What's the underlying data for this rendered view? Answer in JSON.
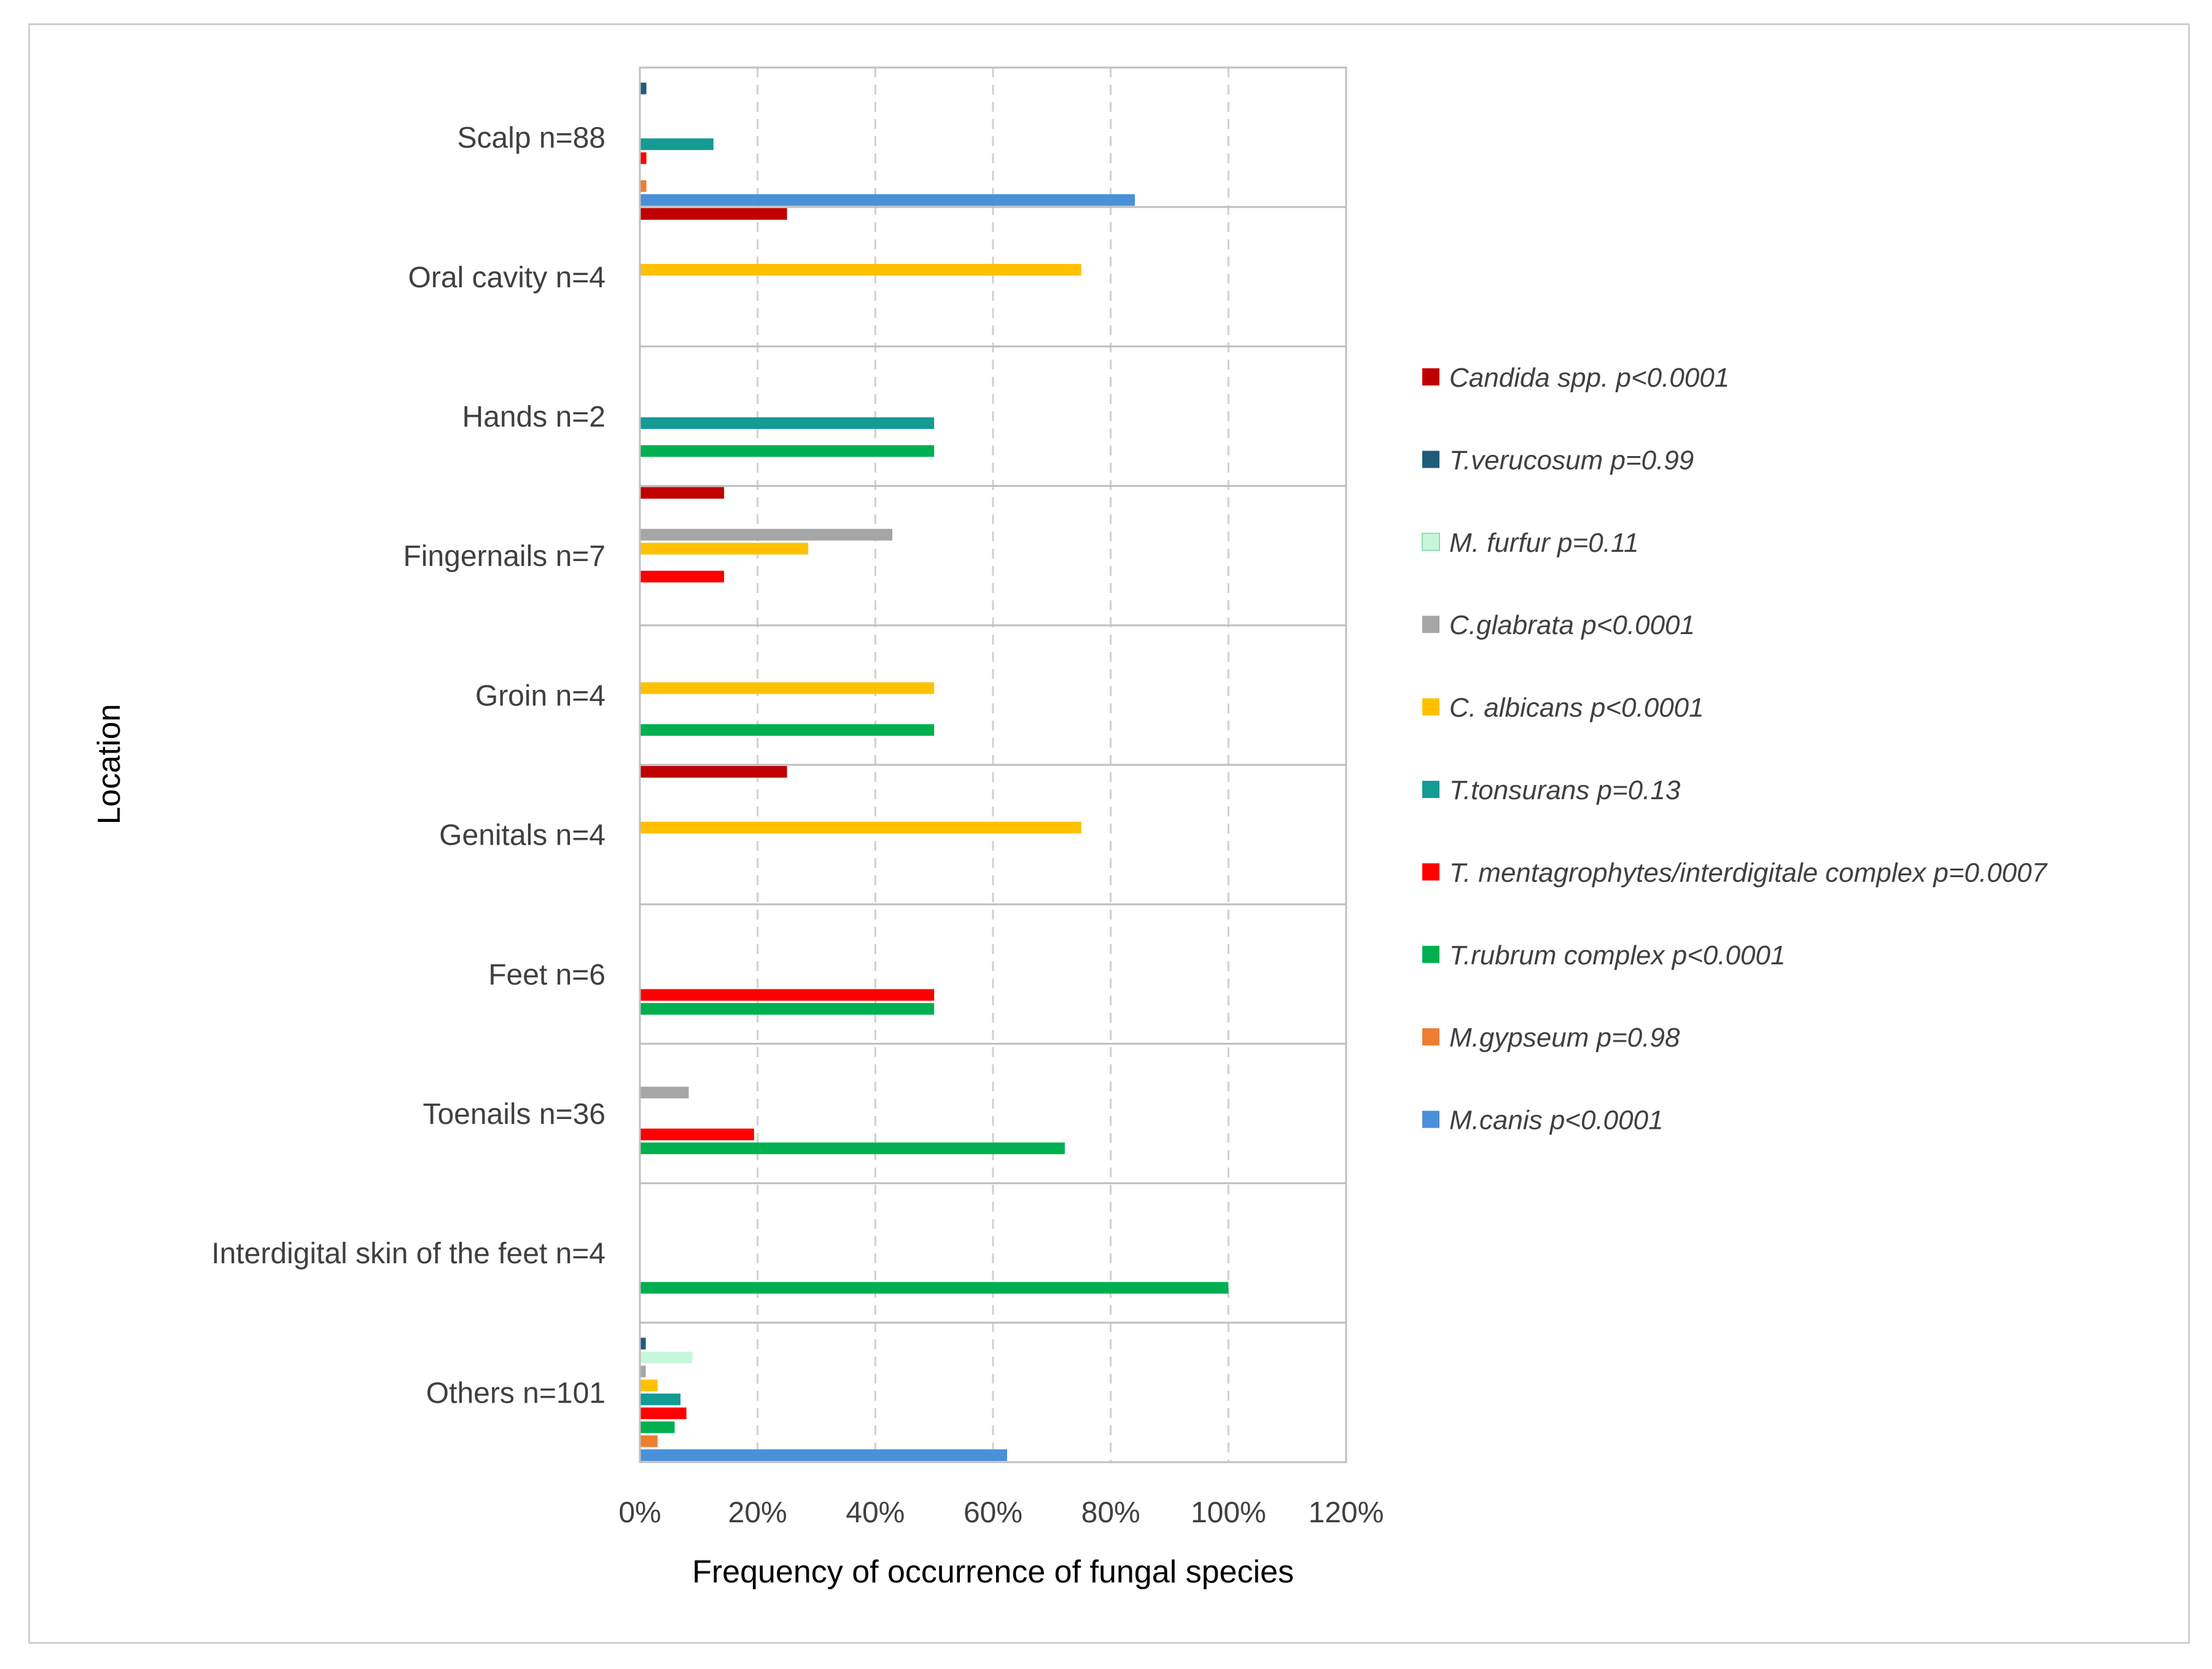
{
  "chart_data": {
    "type": "bar",
    "orientation": "horizontal",
    "xlabel": "Frequency of occurrence of fungal species",
    "ylabel": "Location",
    "xlim": [
      0,
      120
    ],
    "xticks": [
      0,
      20,
      40,
      60,
      80,
      100,
      120
    ],
    "xtick_labels": [
      "0%",
      "20%",
      "40%",
      "60%",
      "80%",
      "100%",
      "120%"
    ],
    "grid": "vertical dashed",
    "legend_position": "right",
    "categories": [
      "Scalp n=88",
      "Oral cavity n=4",
      "Hands n=2",
      "Fingernails n=7",
      "Groin n=4",
      "Genitals n=4",
      "Feet n=6",
      "Toenails n=36",
      "Interdigital skin of the feet n=4",
      "Others n=101"
    ],
    "series": [
      {
        "name": "Candida spp. p<0.0001",
        "color": "#C00000",
        "values": [
          0,
          25,
          0,
          14.3,
          0,
          25,
          0,
          0,
          0,
          0
        ]
      },
      {
        "name": "T.verucosum p=0.99",
        "color": "#1F5C7A",
        "values": [
          1.1,
          0,
          0,
          0,
          0,
          0,
          0,
          0,
          0,
          1
        ]
      },
      {
        "name": "M. furfur p=0.11",
        "color": "#C6F7D9",
        "values": [
          0,
          0,
          0,
          0,
          0,
          0,
          0,
          0,
          0,
          8.9
        ]
      },
      {
        "name": "C.glabrata p<0.0001",
        "color": "#A6A6A6",
        "values": [
          0,
          0,
          0,
          42.9,
          0,
          0,
          0,
          8.3,
          0,
          1
        ]
      },
      {
        "name": "C. albicans p<0.0001",
        "color": "#FFC000",
        "values": [
          0,
          75,
          0,
          28.6,
          50,
          75,
          0,
          0,
          0,
          3
        ]
      },
      {
        "name": "T.tonsurans p=0.13",
        "color": "#139B94",
        "values": [
          12.5,
          0,
          50,
          0,
          0,
          0,
          0,
          0,
          0,
          6.9
        ]
      },
      {
        "name": "T. mentagrophytes/interdigitale complex p=0.0007",
        "color": "#FF0000",
        "values": [
          1.1,
          0,
          0,
          14.3,
          0,
          0,
          50,
          19.4,
          0,
          7.9
        ]
      },
      {
        "name": "T.rubrum complex p<0.0001",
        "color": "#00B050",
        "values": [
          0,
          0,
          50,
          0,
          50,
          0,
          50,
          72.2,
          100,
          5.9
        ]
      },
      {
        "name": "M.gypseum p=0.98",
        "color": "#ED7D31",
        "values": [
          1.1,
          0,
          0,
          0,
          0,
          0,
          0,
          0,
          0,
          3
        ]
      },
      {
        "name": "M.canis p<0.0001",
        "color": "#4A90D9",
        "values": [
          84.1,
          0,
          0,
          0,
          0,
          0,
          0,
          0,
          0,
          62.4
        ]
      }
    ]
  }
}
